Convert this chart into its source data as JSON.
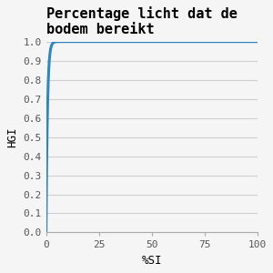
{
  "title": "Percentage licht dat de\nbodem bereikt",
  "xlabel": "%SI",
  "ylabel": "HGI",
  "xlim": [
    0,
    100
  ],
  "ylim": [
    0.0,
    1.0
  ],
  "x_ticks": [
    0,
    25,
    50,
    75,
    100
  ],
  "y_ticks": [
    0.0,
    0.1,
    0.2,
    0.3,
    0.4,
    0.5,
    0.6,
    0.7,
    0.8,
    0.9,
    1.0
  ],
  "line_color": "#2e86c1",
  "background_color": "#f5f5f5",
  "plot_background": "#f5f5f5",
  "grid_color": "#d0d0d0",
  "title_fontsize": 11,
  "axis_label_fontsize": 9,
  "tick_fontsize": 8,
  "line_width": 2.2,
  "curve_k": 1.5
}
